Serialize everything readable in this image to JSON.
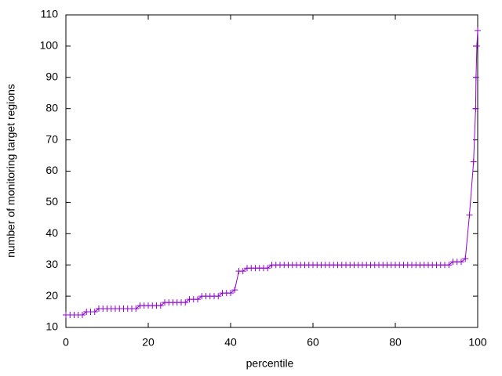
{
  "chart_data": {
    "type": "line",
    "xlabel": "percentile",
    "ylabel": "number of monitoring target regions",
    "color": "#9400d3",
    "x": [
      0,
      1,
      2,
      3,
      4,
      5,
      6,
      7,
      8,
      9,
      10,
      11,
      12,
      13,
      14,
      15,
      16,
      17,
      18,
      19,
      20,
      21,
      22,
      23,
      24,
      25,
      26,
      27,
      28,
      29,
      30,
      31,
      32,
      33,
      34,
      35,
      36,
      37,
      38,
      39,
      40,
      41,
      42,
      43,
      44,
      45,
      46,
      47,
      48,
      49,
      50,
      51,
      52,
      53,
      54,
      55,
      56,
      57,
      58,
      59,
      60,
      61,
      62,
      63,
      64,
      65,
      66,
      67,
      68,
      69,
      70,
      71,
      72,
      73,
      74,
      75,
      76,
      77,
      78,
      79,
      80,
      81,
      82,
      83,
      84,
      85,
      86,
      87,
      88,
      89,
      90,
      91,
      92,
      93,
      94,
      95,
      96,
      97,
      98,
      99,
      99.5,
      99.6,
      99.8,
      100
    ],
    "values": [
      14,
      14,
      14,
      14,
      14,
      15,
      15,
      15,
      16,
      16,
      16,
      16,
      16,
      16,
      16,
      16,
      16,
      16,
      17,
      17,
      17,
      17,
      17,
      17,
      18,
      18,
      18,
      18,
      18,
      18,
      19,
      19,
      19,
      20,
      20,
      20,
      20,
      20,
      21,
      21,
      21,
      22,
      28,
      28,
      29,
      29,
      29,
      29,
      29,
      29,
      30,
      30,
      30,
      30,
      30,
      30,
      30,
      30,
      30,
      30,
      30,
      30,
      30,
      30,
      30,
      30,
      30,
      30,
      30,
      30,
      30,
      30,
      30,
      30,
      30,
      30,
      30,
      30,
      30,
      30,
      30,
      30,
      30,
      30,
      30,
      30,
      30,
      30,
      30,
      30,
      30,
      30,
      30,
      30,
      31,
      31,
      31,
      32,
      46,
      63,
      80,
      90,
      100,
      105
    ],
    "xlim": [
      0,
      100
    ],
    "ylim": [
      10,
      110
    ],
    "xticks": [
      0,
      20,
      40,
      60,
      80,
      100
    ],
    "yticks": [
      10,
      20,
      30,
      40,
      50,
      60,
      70,
      80,
      90,
      100,
      110
    ]
  }
}
